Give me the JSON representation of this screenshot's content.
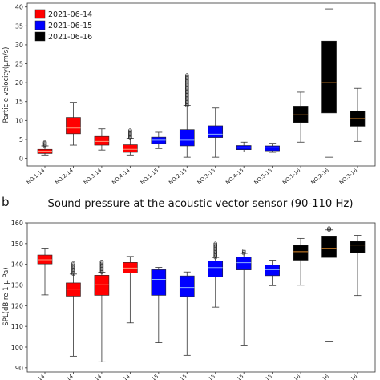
{
  "chart_data": [
    {
      "type": "box",
      "panel_label": "",
      "title": "",
      "ylabel": "Particle velocity(μm/s)",
      "xlabel": "",
      "ylim": [
        -2,
        41
      ],
      "yticks": [
        0,
        5,
        10,
        15,
        20,
        25,
        30,
        35,
        40
      ],
      "grid": false,
      "legend_position": "top-left",
      "legend": [
        {
          "label": "2021-06-14",
          "color": "#ff0000"
        },
        {
          "label": "2021-06-15",
          "color": "#0000ff"
        },
        {
          "label": "2021-06-16",
          "color": "#000000"
        }
      ],
      "categories": [
        "NO.1-14",
        "NO.2-14",
        "NO.3-14",
        "NO.4-14",
        "NO.1-15",
        "NO.2-15",
        "NO.3-15",
        "NO.4-15",
        "NO.5-15",
        "NO.1-16",
        "NO.2-16",
        "NO.3-16"
      ],
      "boxes": [
        {
          "color": "#ff0000",
          "min": 0.9,
          "q1": 1.3,
          "median": 1.9,
          "q3": 2.4,
          "max": 3.3,
          "outliers_range": [
            3.3,
            4.3
          ]
        },
        {
          "color": "#ff0000",
          "min": 3.5,
          "q1": 6.5,
          "median": 8.0,
          "q3": 10.8,
          "max": 14.8,
          "outliers_range": null
        },
        {
          "color": "#ff0000",
          "min": 2.2,
          "q1": 3.5,
          "median": 4.5,
          "q3": 5.8,
          "max": 7.8,
          "outliers_range": null
        },
        {
          "color": "#ff0000",
          "min": 0.9,
          "q1": 1.6,
          "median": 2.4,
          "q3": 3.6,
          "max": 5.3,
          "outliers_range": [
            5.3,
            7.4
          ]
        },
        {
          "color": "#0000ff",
          "min": 2.6,
          "q1": 3.9,
          "median": 4.8,
          "q3": 5.6,
          "max": 6.9,
          "outliers_range": null
        },
        {
          "color": "#0000ff",
          "min": 0.3,
          "q1": 3.3,
          "median": 4.8,
          "q3": 7.6,
          "max": 14.0,
          "outliers_range": [
            14.0,
            22.0
          ]
        },
        {
          "color": "#0000ff",
          "min": 0.3,
          "q1": 5.5,
          "median": 6.4,
          "q3": 8.6,
          "max": 13.3,
          "outliers_range": null
        },
        {
          "color": "#0000ff",
          "min": 1.7,
          "q1": 2.3,
          "median": 2.8,
          "q3": 3.4,
          "max": 4.3,
          "outliers_range": null
        },
        {
          "color": "#0000ff",
          "min": 1.6,
          "q1": 2.0,
          "median": 2.8,
          "q3": 3.3,
          "max": 4.0,
          "outliers_range": null
        },
        {
          "color": "#000000",
          "min": 4.3,
          "q1": 9.5,
          "median": 11.5,
          "q3": 13.8,
          "max": 17.5,
          "outliers_range": null
        },
        {
          "color": "#000000",
          "min": 0.3,
          "q1": 12.0,
          "median": 20.0,
          "q3": 31.0,
          "max": 39.5,
          "outliers_range": null
        },
        {
          "color": "#000000",
          "min": 4.5,
          "q1": 8.5,
          "median": 10.5,
          "q3": 12.5,
          "max": 18.5,
          "outliers_range": null
        }
      ]
    },
    {
      "type": "box",
      "panel_label": "b",
      "title": "Sound pressure at the acoustic vector sensor (90-110 Hz)",
      "ylabel": "SPL(dB re 1 μ Pa)",
      "xlabel": "",
      "ylim": [
        88,
        160
      ],
      "yticks": [
        90,
        100,
        110,
        120,
        130,
        140,
        150,
        160
      ],
      "grid": false,
      "tick_label_suffixes": [
        "-14",
        "-14",
        "-14",
        "-14",
        "-15",
        "-15",
        "-15",
        "-15",
        "-15",
        "-16",
        "-16",
        "-16"
      ],
      "boxes": [
        {
          "color": "#ff0000",
          "min": 125.2,
          "q1": 140.2,
          "median": 142.2,
          "q3": 144.5,
          "max": 147.8,
          "outliers_range": null
        },
        {
          "color": "#ff0000",
          "min": 95.6,
          "q1": 124.6,
          "median": 128.0,
          "q3": 131.0,
          "max": 135.3,
          "outliers_range": [
            135.3,
            140.5
          ]
        },
        {
          "color": "#ff0000",
          "min": 92.9,
          "q1": 125.0,
          "median": 130.1,
          "q3": 134.7,
          "max": 136.2,
          "outliers_range": [
            136.2,
            141.3
          ]
        },
        {
          "color": "#ff0000",
          "min": 111.7,
          "q1": 135.8,
          "median": 138.2,
          "q3": 140.9,
          "max": 143.8,
          "outliers_range": null
        },
        {
          "color": "#0000ff",
          "min": 102.1,
          "q1": 125.0,
          "median": 132.7,
          "q3": 137.4,
          "max": 138.5,
          "outliers_range": null
        },
        {
          "color": "#0000ff",
          "min": 96.0,
          "q1": 124.4,
          "median": 128.8,
          "q3": 134.4,
          "max": 136.3,
          "outliers_range": null
        },
        {
          "color": "#0000ff",
          "min": 119.3,
          "q1": 133.9,
          "median": 138.4,
          "q3": 141.6,
          "max": 143.3,
          "outliers_range": [
            143.3,
            150.0
          ]
        },
        {
          "color": "#0000ff",
          "min": 101.0,
          "q1": 137.3,
          "median": 140.8,
          "q3": 143.5,
          "max": 145.3,
          "outliers_range": [
            145.3,
            146.5
          ]
        },
        {
          "color": "#0000ff",
          "min": 129.7,
          "q1": 134.5,
          "median": 137.4,
          "q3": 139.7,
          "max": 142.0,
          "outliers_range": null
        },
        {
          "color": "#000000",
          "min": 129.9,
          "q1": 142.0,
          "median": 146.1,
          "q3": 149.2,
          "max": 152.5,
          "outliers_range": null
        },
        {
          "color": "#000000",
          "min": 102.9,
          "q1": 143.3,
          "median": 147.7,
          "q3": 153.3,
          "max": 156.6,
          "outliers_range": [
            156.6,
            157.4
          ]
        },
        {
          "color": "#000000",
          "min": 124.9,
          "q1": 145.6,
          "median": 149.3,
          "q3": 151.1,
          "max": 154.0,
          "outliers_range": null
        }
      ]
    }
  ]
}
